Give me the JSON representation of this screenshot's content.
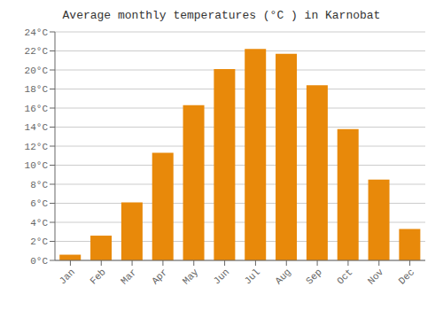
{
  "chart_data": {
    "type": "bar",
    "title": "Average monthly temperatures (°C ) in Karnobat",
    "categories": [
      "Jan",
      "Feb",
      "Mar",
      "Apr",
      "May",
      "Jun",
      "Jul",
      "Aug",
      "Sep",
      "Oct",
      "Nov",
      "Dec"
    ],
    "values": [
      0.6,
      2.6,
      6.1,
      11.3,
      16.3,
      20.1,
      22.2,
      21.7,
      18.4,
      13.8,
      8.5,
      3.3
    ],
    "color": "#E8890A",
    "ylim": [
      0,
      24
    ],
    "yticks": [
      {
        "value": 0,
        "label": "0°C"
      },
      {
        "value": 2,
        "label": "2°C"
      },
      {
        "value": 4,
        "label": "4°C"
      },
      {
        "value": 6,
        "label": "6°C"
      },
      {
        "value": 8,
        "label": "8°C"
      },
      {
        "value": 10,
        "label": "10°C"
      },
      {
        "value": 12,
        "label": "12°C"
      },
      {
        "value": 14,
        "label": "14°C"
      },
      {
        "value": 16,
        "label": "16°C"
      },
      {
        "value": 18,
        "label": "18°C"
      },
      {
        "value": 20,
        "label": "20°C"
      },
      {
        "value": 22,
        "label": "22°C"
      },
      {
        "value": 24,
        "label": "24°C"
      }
    ],
    "grid": true
  }
}
